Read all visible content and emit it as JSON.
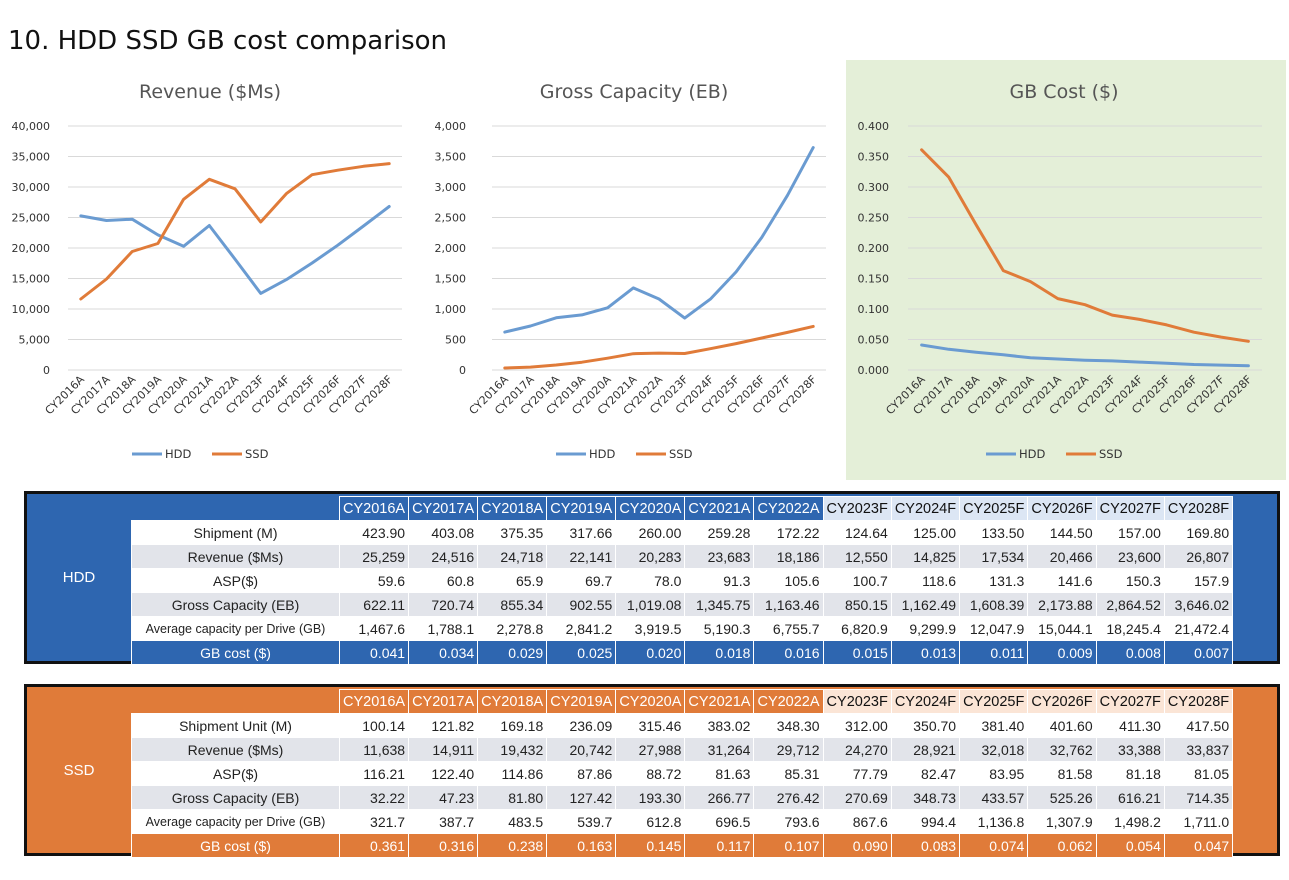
{
  "page_title": "10. HDD SSD GB cost comparison",
  "colors": {
    "hdd": "#6a9bd1",
    "ssd": "#e07b39",
    "grid": "#d9d9d9"
  },
  "chart_data": [
    {
      "type": "line",
      "title": "Revenue ($Ms)",
      "categories": [
        "CY2016A",
        "CY2017A",
        "CY2018A",
        "CY2019A",
        "CY2020A",
        "CY2021A",
        "CY2022A",
        "CY2023F",
        "CY2024F",
        "CY2025F",
        "CY2026F",
        "CY2027F",
        "CY2028F"
      ],
      "ylim": [
        0,
        40000
      ],
      "yticks": [
        0,
        5000,
        10000,
        15000,
        20000,
        25000,
        30000,
        35000,
        40000
      ],
      "ytick_labels": [
        "0",
        "5,000",
        "10,000",
        "15,000",
        "20,000",
        "25,000",
        "30,000",
        "35,000",
        "40,000"
      ],
      "grid": true,
      "legend": "bottom",
      "series": [
        {
          "name": "HDD",
          "values": [
            25259,
            24516,
            24718,
            22141,
            20283,
            23683,
            18186,
            12550,
            14825,
            17534,
            20466,
            23600,
            26807
          ]
        },
        {
          "name": "SSD",
          "values": [
            11638,
            14911,
            19432,
            20742,
            27988,
            31264,
            29712,
            24270,
            28921,
            32018,
            32762,
            33388,
            33837
          ]
        }
      ]
    },
    {
      "type": "line",
      "title": "Gross Capacity (EB)",
      "categories": [
        "CY2016A",
        "CY2017A",
        "CY2018A",
        "CY2019A",
        "CY2020A",
        "CY2021A",
        "CY2022A",
        "CY2023F",
        "CY2024F",
        "CY2025F",
        "CY2026F",
        "CY2027F",
        "CY2028F"
      ],
      "ylim": [
        0,
        4000
      ],
      "yticks": [
        0,
        500,
        1000,
        1500,
        2000,
        2500,
        3000,
        3500,
        4000
      ],
      "ytick_labels": [
        "0",
        "500",
        "1,000",
        "1,500",
        "2,000",
        "2,500",
        "3,000",
        "3,500",
        "4,000"
      ],
      "grid": true,
      "legend": "bottom",
      "series": [
        {
          "name": "HDD",
          "values": [
            622.11,
            720.74,
            855.34,
            902.55,
            1019.08,
            1345.75,
            1163.46,
            850.15,
            1162.49,
            1608.39,
            2173.88,
            2864.52,
            3646.02
          ]
        },
        {
          "name": "SSD",
          "values": [
            32.22,
            47.23,
            81.8,
            127.42,
            193.3,
            266.77,
            276.42,
            270.69,
            348.73,
            433.57,
            525.26,
            616.21,
            714.35
          ]
        }
      ]
    },
    {
      "type": "line",
      "title": "GB Cost ($)",
      "categories": [
        "CY2016A",
        "CY2017A",
        "CY2018A",
        "CY2019A",
        "CY2020A",
        "CY2021A",
        "CY2022A",
        "CY2023F",
        "CY2024F",
        "CY2025F",
        "CY2026F",
        "CY2027F",
        "CY2028F"
      ],
      "ylim": [
        0,
        0.4
      ],
      "yticks": [
        0,
        0.05,
        0.1,
        0.15,
        0.2,
        0.25,
        0.3,
        0.35,
        0.4
      ],
      "ytick_labels": [
        "0.000",
        "0.050",
        "0.100",
        "0.150",
        "0.200",
        "0.250",
        "0.300",
        "0.350",
        "0.400"
      ],
      "grid": true,
      "legend": "bottom",
      "series": [
        {
          "name": "HDD",
          "values": [
            0.041,
            0.034,
            0.029,
            0.025,
            0.02,
            0.018,
            0.016,
            0.015,
            0.013,
            0.011,
            0.009,
            0.008,
            0.007
          ]
        },
        {
          "name": "SSD",
          "values": [
            0.361,
            0.316,
            0.238,
            0.163,
            0.145,
            0.117,
            0.107,
            0.09,
            0.083,
            0.074,
            0.062,
            0.054,
            0.047
          ]
        }
      ]
    }
  ],
  "tables": [
    {
      "segment": "HDD",
      "headers": [
        "CY2016A",
        "CY2017A",
        "CY2018A",
        "CY2019A",
        "CY2020A",
        "CY2021A",
        "CY2022A",
        "CY2023F",
        "CY2024F",
        "CY2025F",
        "CY2026F",
        "CY2027F",
        "CY2028F"
      ],
      "rows": [
        {
          "label": "Shipment (M)",
          "values": [
            "423.90",
            "403.08",
            "375.35",
            "317.66",
            "260.00",
            "259.28",
            "172.22",
            "124.64",
            "125.00",
            "133.50",
            "144.50",
            "157.00",
            "169.80"
          ]
        },
        {
          "label": "Revenue ($Ms)",
          "values": [
            "25,259",
            "24,516",
            "24,718",
            "22,141",
            "20,283",
            "23,683",
            "18,186",
            "12,550",
            "14,825",
            "17,534",
            "20,466",
            "23,600",
            "26,807"
          ]
        },
        {
          "label": "ASP($)",
          "values": [
            "59.6",
            "60.8",
            "65.9",
            "69.7",
            "78.0",
            "91.3",
            "105.6",
            "100.7",
            "118.6",
            "131.3",
            "141.6",
            "150.3",
            "157.9"
          ]
        },
        {
          "label": "Gross Capacity (EB)",
          "values": [
            "622.11",
            "720.74",
            "855.34",
            "902.55",
            "1,019.08",
            "1,345.75",
            "1,163.46",
            "850.15",
            "1,162.49",
            "1,608.39",
            "2,173.88",
            "2,864.52",
            "3,646.02"
          ]
        },
        {
          "label": "Average capacity per Drive (GB)",
          "values": [
            "1,467.6",
            "1,788.1",
            "2,278.8",
            "2,841.2",
            "3,919.5",
            "5,190.3",
            "6,755.7",
            "6,820.9",
            "9,299.9",
            "12,047.9",
            "15,044.1",
            "18,245.4",
            "21,472.4"
          ]
        },
        {
          "label": "GB cost ($)",
          "values": [
            "0.041",
            "0.034",
            "0.029",
            "0.025",
            "0.020",
            "0.018",
            "0.016",
            "0.015",
            "0.013",
            "0.011",
            "0.009",
            "0.008",
            "0.007"
          ]
        }
      ]
    },
    {
      "segment": "SSD",
      "headers": [
        "CY2016A",
        "CY2017A",
        "CY2018A",
        "CY2019A",
        "CY2020A",
        "CY2021A",
        "CY2022A",
        "CY2023F",
        "CY2024F",
        "CY2025F",
        "CY2026F",
        "CY2027F",
        "CY2028F"
      ],
      "rows": [
        {
          "label": "Shipment Unit (M)",
          "values": [
            "100.14",
            "121.82",
            "169.18",
            "236.09",
            "315.46",
            "383.02",
            "348.30",
            "312.00",
            "350.70",
            "381.40",
            "401.60",
            "411.30",
            "417.50"
          ]
        },
        {
          "label": "Revenue ($Ms)",
          "values": [
            "11,638",
            "14,911",
            "19,432",
            "20,742",
            "27,988",
            "31,264",
            "29,712",
            "24,270",
            "28,921",
            "32,018",
            "32,762",
            "33,388",
            "33,837"
          ]
        },
        {
          "label": "ASP($)",
          "values": [
            "116.21",
            "122.40",
            "114.86",
            "87.86",
            "88.72",
            "81.63",
            "85.31",
            "77.79",
            "82.47",
            "83.95",
            "81.58",
            "81.18",
            "81.05"
          ]
        },
        {
          "label": "Gross Capacity (EB)",
          "values": [
            "32.22",
            "47.23",
            "81.80",
            "127.42",
            "193.30",
            "266.77",
            "276.42",
            "270.69",
            "348.73",
            "433.57",
            "525.26",
            "616.21",
            "714.35"
          ]
        },
        {
          "label": "Average capacity per Drive (GB)",
          "values": [
            "321.7",
            "387.7",
            "483.5",
            "539.7",
            "612.8",
            "696.5",
            "793.6",
            "867.6",
            "994.4",
            "1,136.8",
            "1,307.9",
            "1,498.2",
            "1,711.0"
          ]
        },
        {
          "label": "GB cost ($)",
          "values": [
            "0.361",
            "0.316",
            "0.238",
            "0.163",
            "0.145",
            "0.117",
            "0.107",
            "0.090",
            "0.083",
            "0.074",
            "0.062",
            "0.054",
            "0.047"
          ]
        }
      ]
    }
  ]
}
